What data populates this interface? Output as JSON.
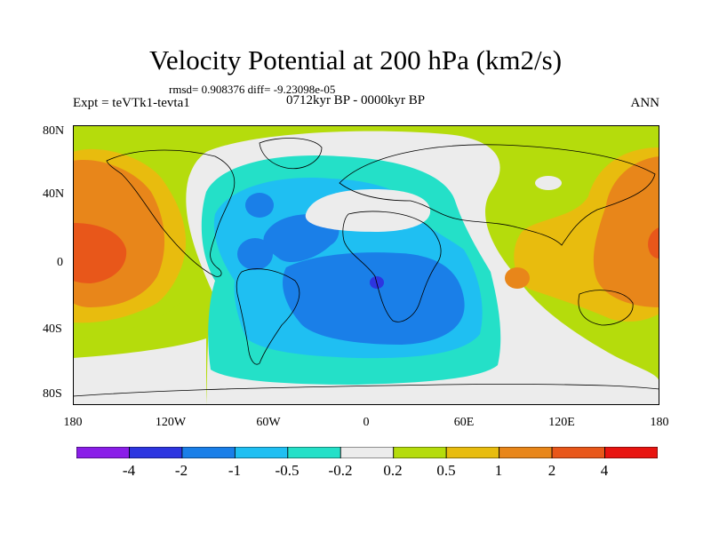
{
  "header": {
    "title": "Velocity Potential at 200 hPa (km2/s)",
    "stats": "rmsd= 0.908376 diff= -9.23098e-05",
    "experiment": "Expt = teVTk1-tevta1",
    "period": "0712kyr BP - 0000kyr BP",
    "season": "ANN"
  },
  "map": {
    "projection": "cylindrical equidistant",
    "lon_range": [
      -180,
      180
    ],
    "lat_range": [
      -90,
      90
    ],
    "lat_ticks": [
      "80N",
      "40N",
      "0",
      "40S",
      "80S"
    ],
    "lon_ticks": [
      "180",
      "120W",
      "60W",
      "0",
      "60E",
      "120E",
      "180"
    ]
  },
  "colorbar": {
    "labels": [
      "-4",
      "-2",
      "-1",
      "-0.5",
      "-0.2",
      "0.2",
      "0.5",
      "1",
      "2",
      "4"
    ],
    "colors": [
      "#8a1ee8",
      "#2d35e0",
      "#1a7fe8",
      "#1fbff2",
      "#24e0c8",
      "#ececec",
      "#b5dc0c",
      "#e8bc0e",
      "#e8861a",
      "#e8571a",
      "#e81410"
    ]
  }
}
